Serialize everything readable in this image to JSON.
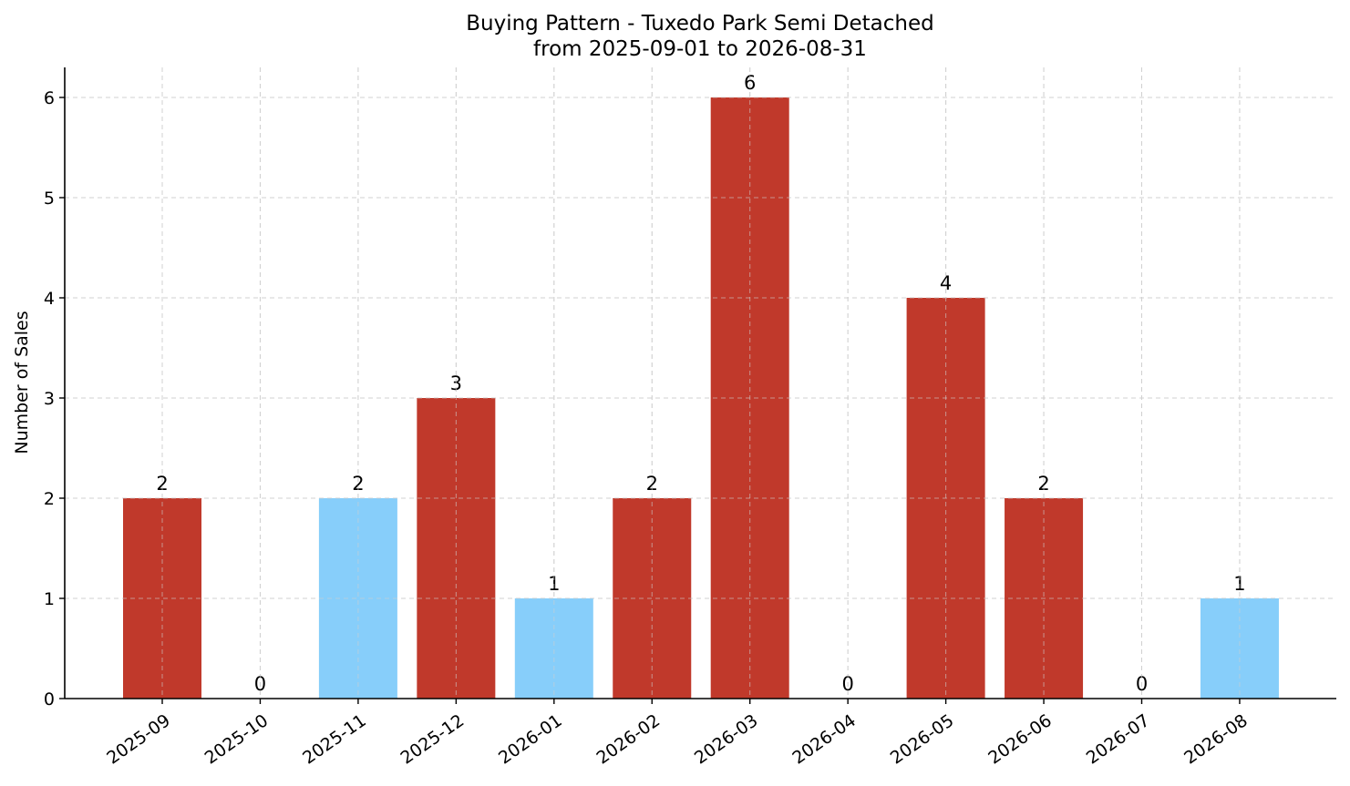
{
  "chart_data": {
    "type": "bar",
    "title": "Buying Pattern - Tuxedo Park Semi Detached",
    "subtitle": "from 2025-09-01 to 2026-08-31",
    "xlabel": "",
    "ylabel": "Number of Sales",
    "ylim": [
      0,
      6.3
    ],
    "yticks": [
      "0",
      "1",
      "2",
      "3",
      "4",
      "5",
      "6"
    ],
    "grid": true,
    "categories": [
      "2025-09",
      "2025-10",
      "2025-11",
      "2025-12",
      "2026-01",
      "2026-02",
      "2026-03",
      "2026-04",
      "2026-05",
      "2026-06",
      "2026-07",
      "2026-08"
    ],
    "values": [
      2,
      0,
      2,
      3,
      1,
      2,
      6,
      0,
      4,
      2,
      0,
      1
    ],
    "bar_colors": [
      "#c0392b",
      "#c0392b",
      "#87cefa",
      "#c0392b",
      "#87cefa",
      "#c0392b",
      "#c0392b",
      "#c0392b",
      "#c0392b",
      "#c0392b",
      "#c0392b",
      "#87cefa"
    ]
  }
}
